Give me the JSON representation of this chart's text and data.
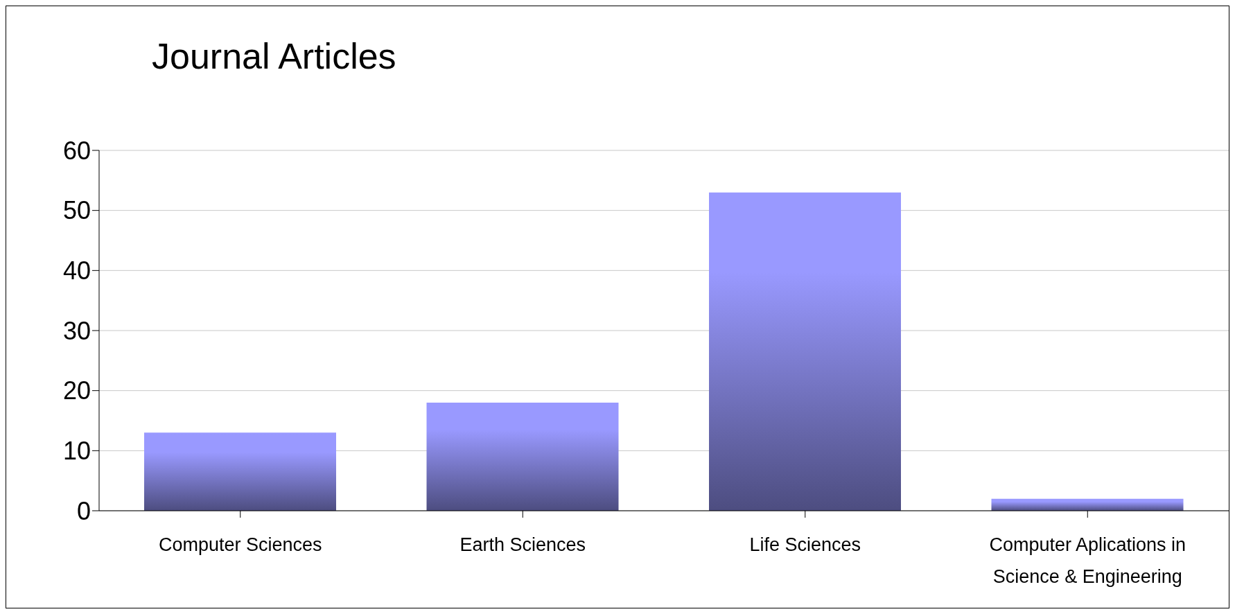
{
  "chart_data": {
    "type": "bar",
    "title": "Journal Articles",
    "categories": [
      "Computer Sciences",
      "Earth Sciences",
      "Life Sciences",
      "Computer Aplications in Science & Engineering"
    ],
    "values": [
      13,
      18,
      53,
      2
    ],
    "color": "#9999ff",
    "ylim": [
      0,
      60
    ],
    "yticks": [
      0,
      10,
      20,
      30,
      40,
      50,
      60
    ],
    "grid": "y"
  }
}
